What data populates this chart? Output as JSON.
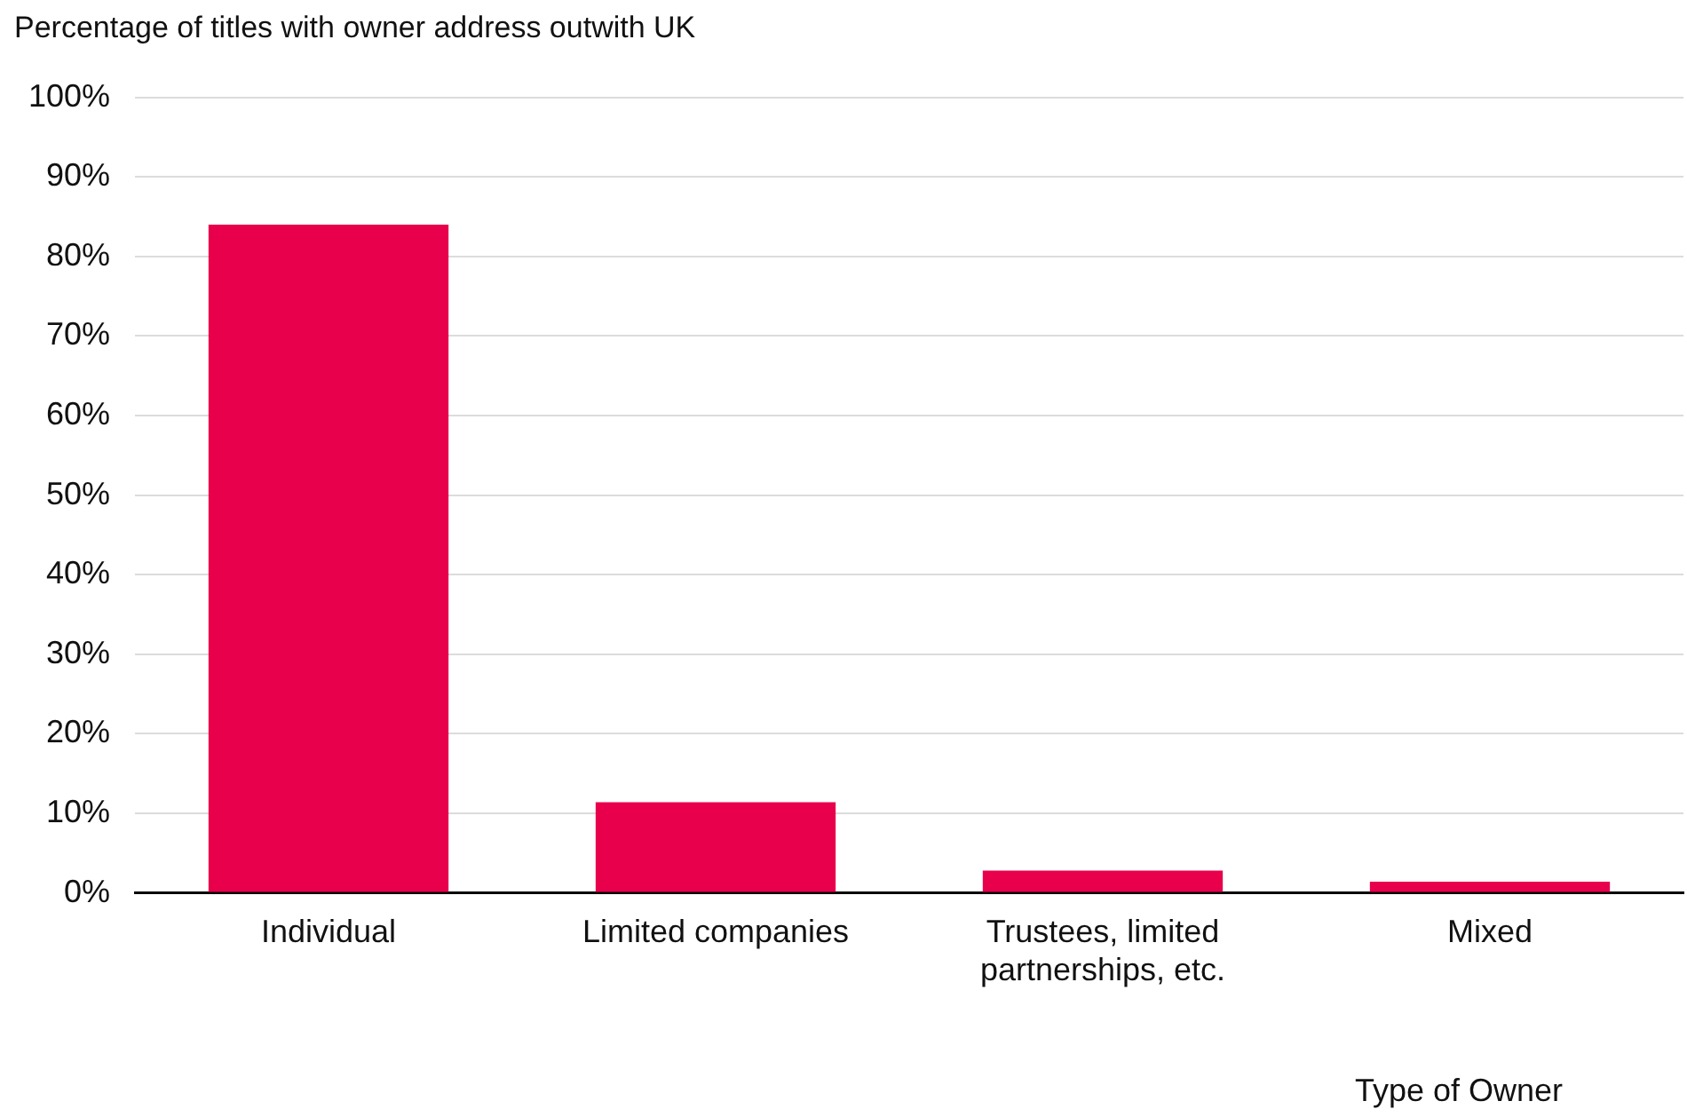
{
  "chart_data": {
    "type": "bar",
    "ylabel": "Percentage of titles with owner address outwith UK",
    "xlabel": "Type of Owner",
    "categories": [
      "Individual",
      "Limited companies",
      "Trustees, limited partnerships, etc.",
      "Mixed"
    ],
    "values": [
      84.0,
      11.4,
      2.8,
      1.4
    ],
    "color": "#e8004c",
    "ylim": [
      0,
      100
    ],
    "yticks": [
      {
        "value": 0,
        "label": "0%"
      },
      {
        "value": 10,
        "label": "10%"
      },
      {
        "value": 20,
        "label": "20%"
      },
      {
        "value": 30,
        "label": "30%"
      },
      {
        "value": 40,
        "label": "40%"
      },
      {
        "value": 50,
        "label": "50%"
      },
      {
        "value": 60,
        "label": "60%"
      },
      {
        "value": 70,
        "label": "70%"
      },
      {
        "value": 80,
        "label": "80%"
      },
      {
        "value": 90,
        "label": "90%"
      },
      {
        "value": 100,
        "label": "100%"
      }
    ],
    "grid": "y",
    "legend": false
  }
}
